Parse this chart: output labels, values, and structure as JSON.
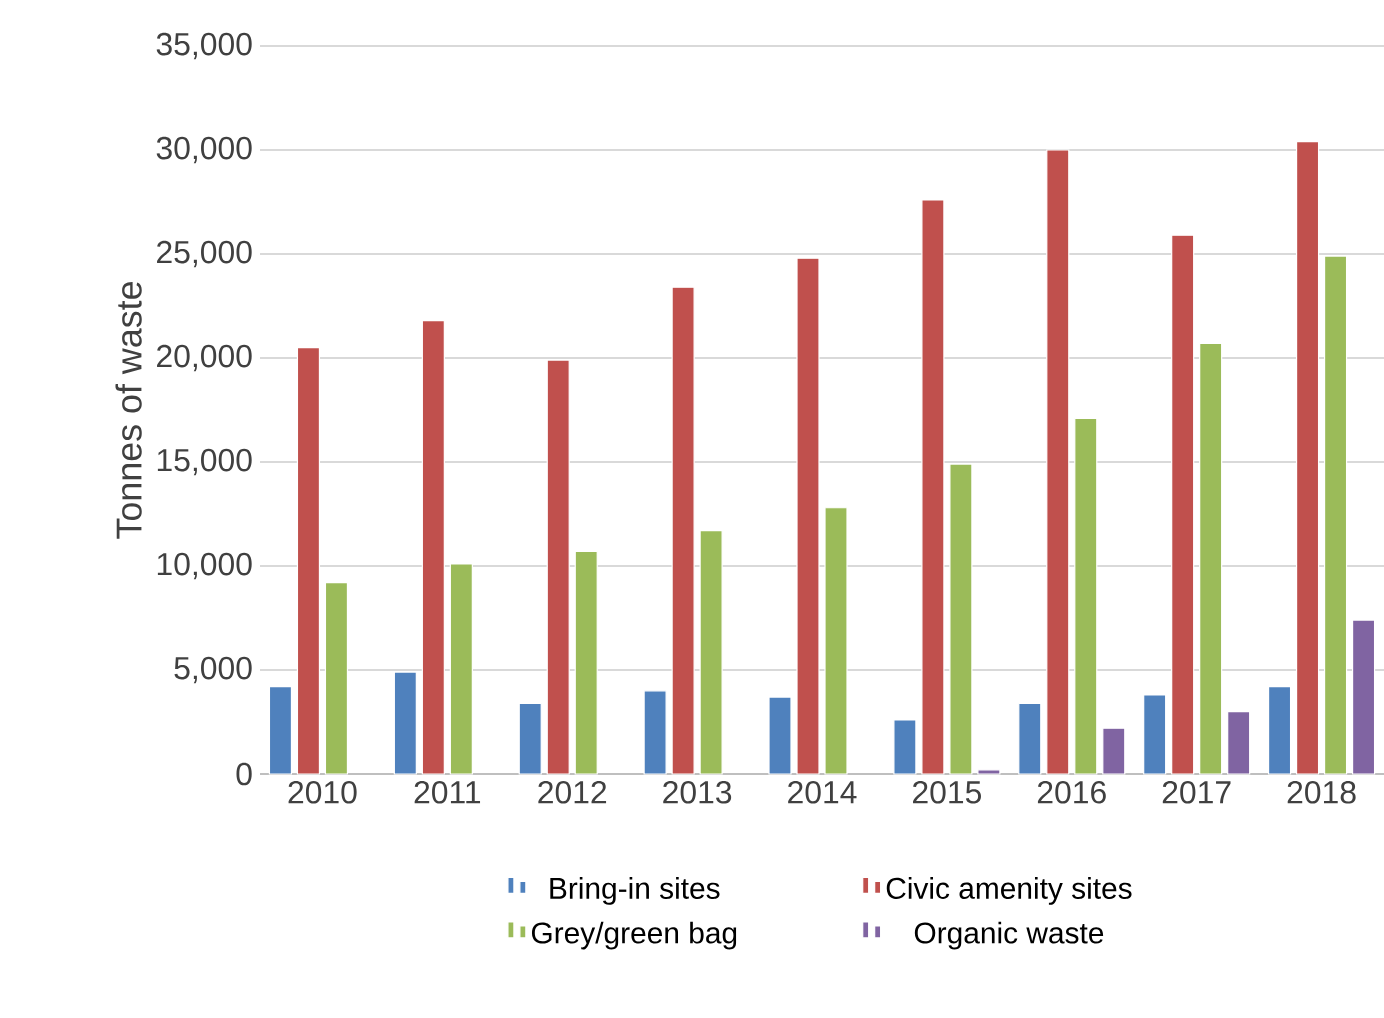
{
  "chart_data": {
    "type": "bar",
    "ylabel": "Tonnes of waste",
    "categories": [
      "2010",
      "2011",
      "2012",
      "2013",
      "2014",
      "2015",
      "2016",
      "2017",
      "2018"
    ],
    "series": [
      {
        "name": "Bring-in sites",
        "color": "#4f81bd",
        "values": [
          4200,
          4900,
          3400,
          4000,
          3700,
          2600,
          3400,
          3800,
          4200
        ]
      },
      {
        "name": "Civic amenity sites",
        "color": "#c0504d",
        "values": [
          20500,
          21800,
          19900,
          23400,
          24800,
          27600,
          30000,
          25900,
          30400
        ]
      },
      {
        "name": "Grey/green bag",
        "color": "#9bbb59",
        "values": [
          9200,
          10100,
          10700,
          11700,
          12800,
          14900,
          17100,
          20700,
          24900
        ]
      },
      {
        "name": "Organic waste",
        "color": "#8064a2",
        "values": [
          null,
          null,
          null,
          null,
          null,
          200,
          2200,
          3000,
          7400
        ]
      }
    ],
    "ylim": [
      0,
      35000
    ],
    "yticks": [
      {
        "value": 0,
        "label": "0"
      },
      {
        "value": 5000,
        "label": "5,000"
      },
      {
        "value": 10000,
        "label": "10,000"
      },
      {
        "value": 15000,
        "label": "15,000"
      },
      {
        "value": 20000,
        "label": "20,000"
      },
      {
        "value": 25000,
        "label": "25,000"
      },
      {
        "value": 30000,
        "label": "30,000"
      },
      {
        "value": 35000,
        "label": "35,000"
      }
    ],
    "grid": "y",
    "legend": "bottom"
  }
}
